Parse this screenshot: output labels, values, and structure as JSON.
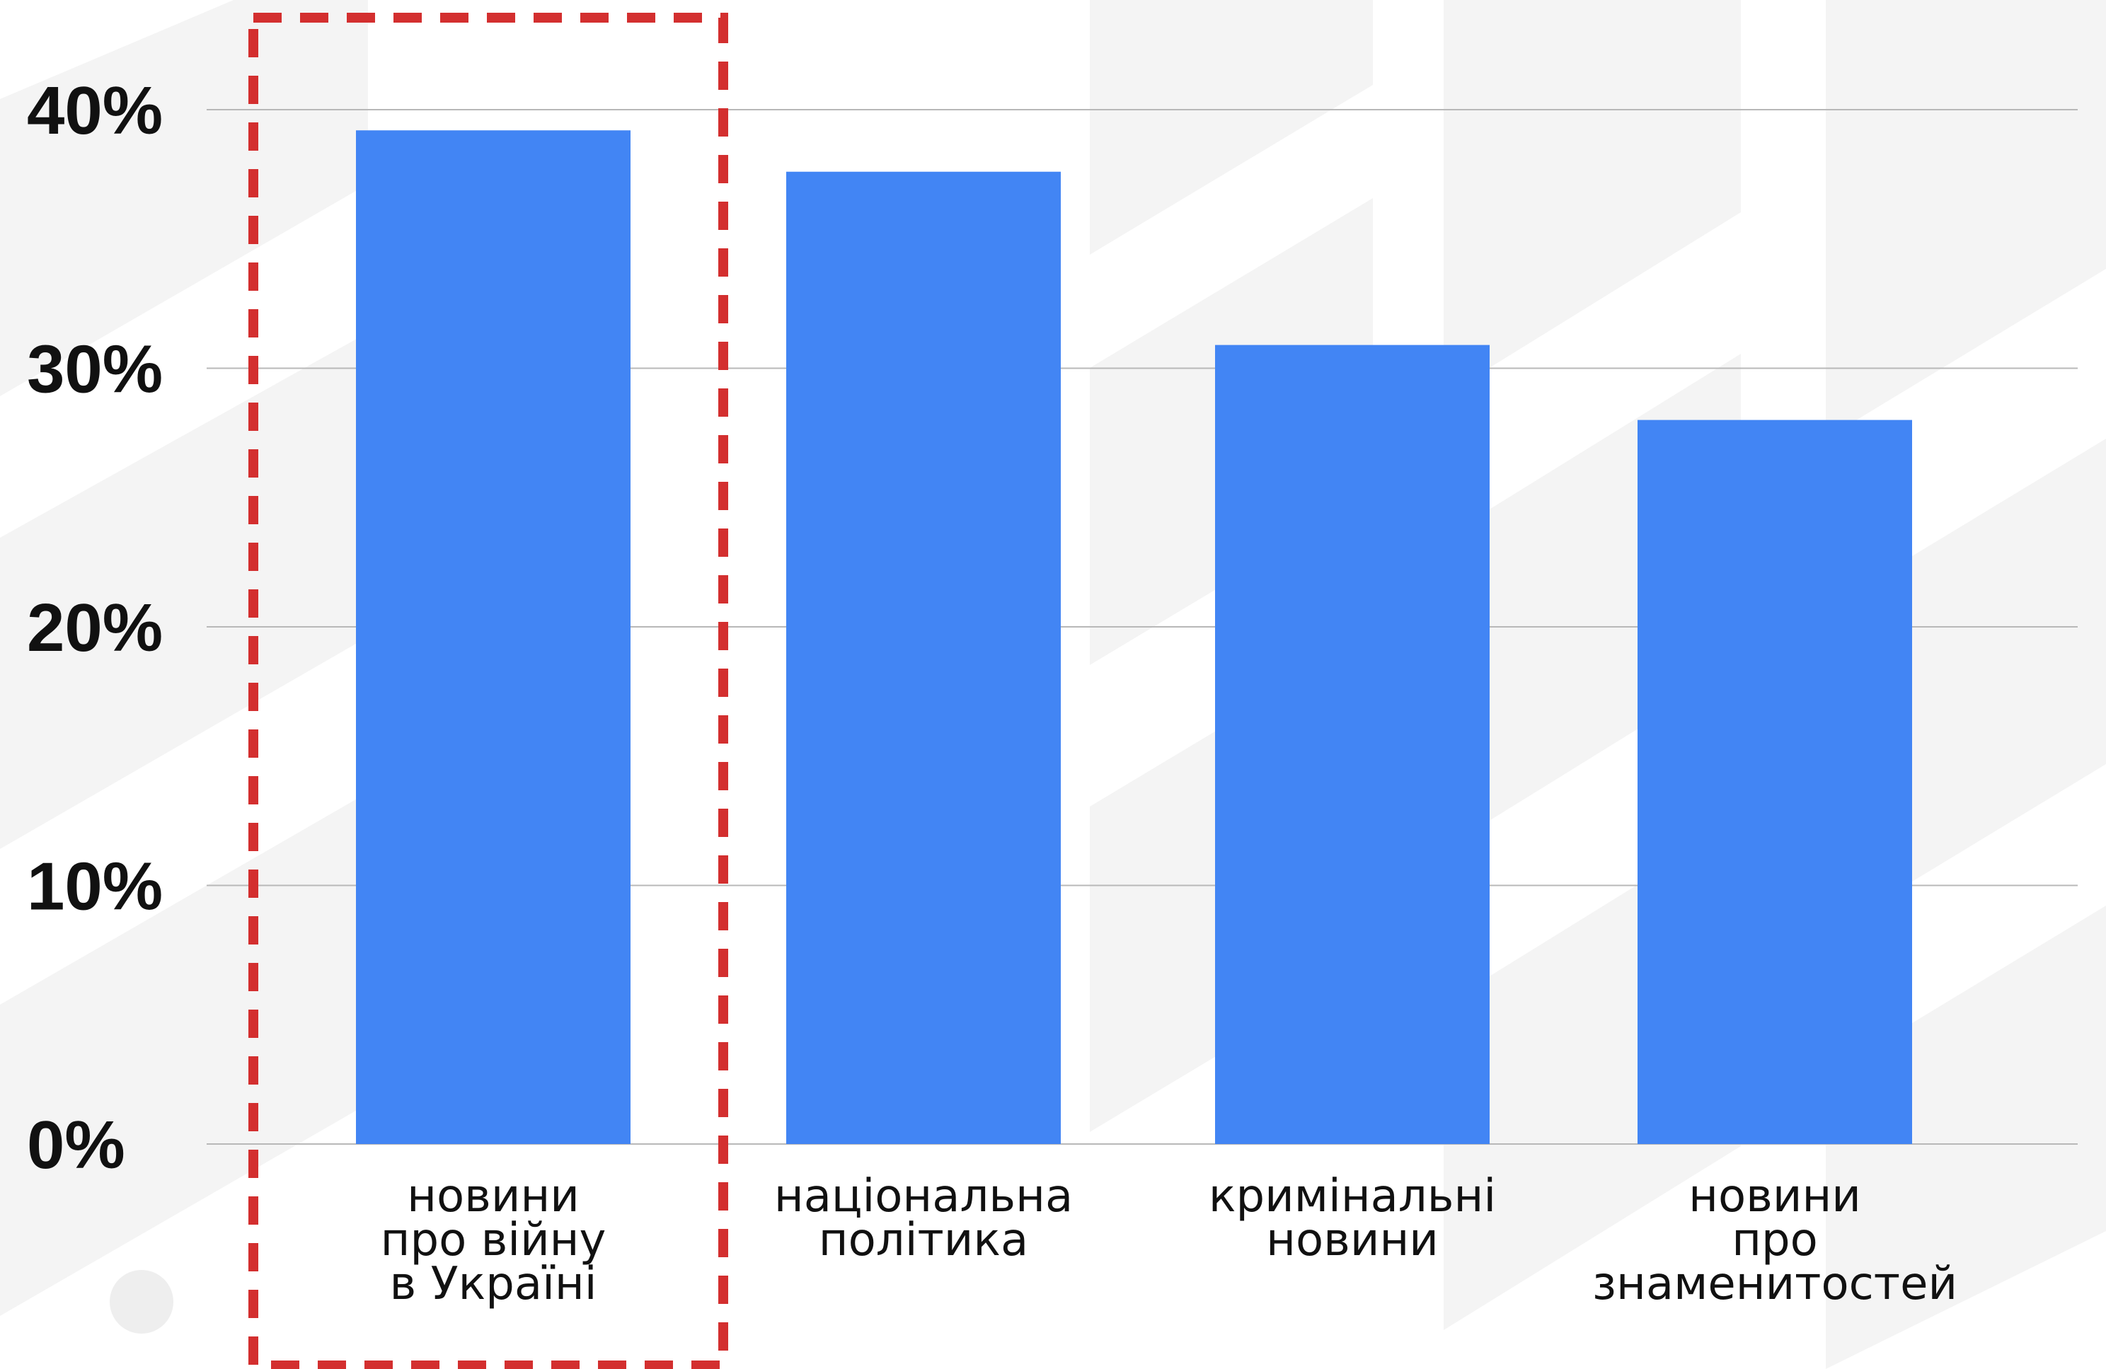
{
  "chart_data": {
    "type": "bar",
    "categories": [
      [
        "новини",
        "про війну",
        "в Україні"
      ],
      [
        "національна",
        "політика"
      ],
      [
        "кримінальні",
        "новини"
      ],
      [
        "новини",
        "про",
        "знаменитостей"
      ]
    ],
    "values": [
      39.2,
      37.6,
      30.9,
      28.0
    ],
    "ylim": [
      0,
      40
    ],
    "yticks": [
      "0%",
      "10%",
      "20%",
      "30%",
      "40%"
    ],
    "grid": true,
    "highlight_category_index": 0
  },
  "colors": {
    "bar": "#4285F4",
    "grid": "#b8b8b8",
    "highlight": "#D32F2F",
    "background_pattern": "#f4f4f4"
  }
}
